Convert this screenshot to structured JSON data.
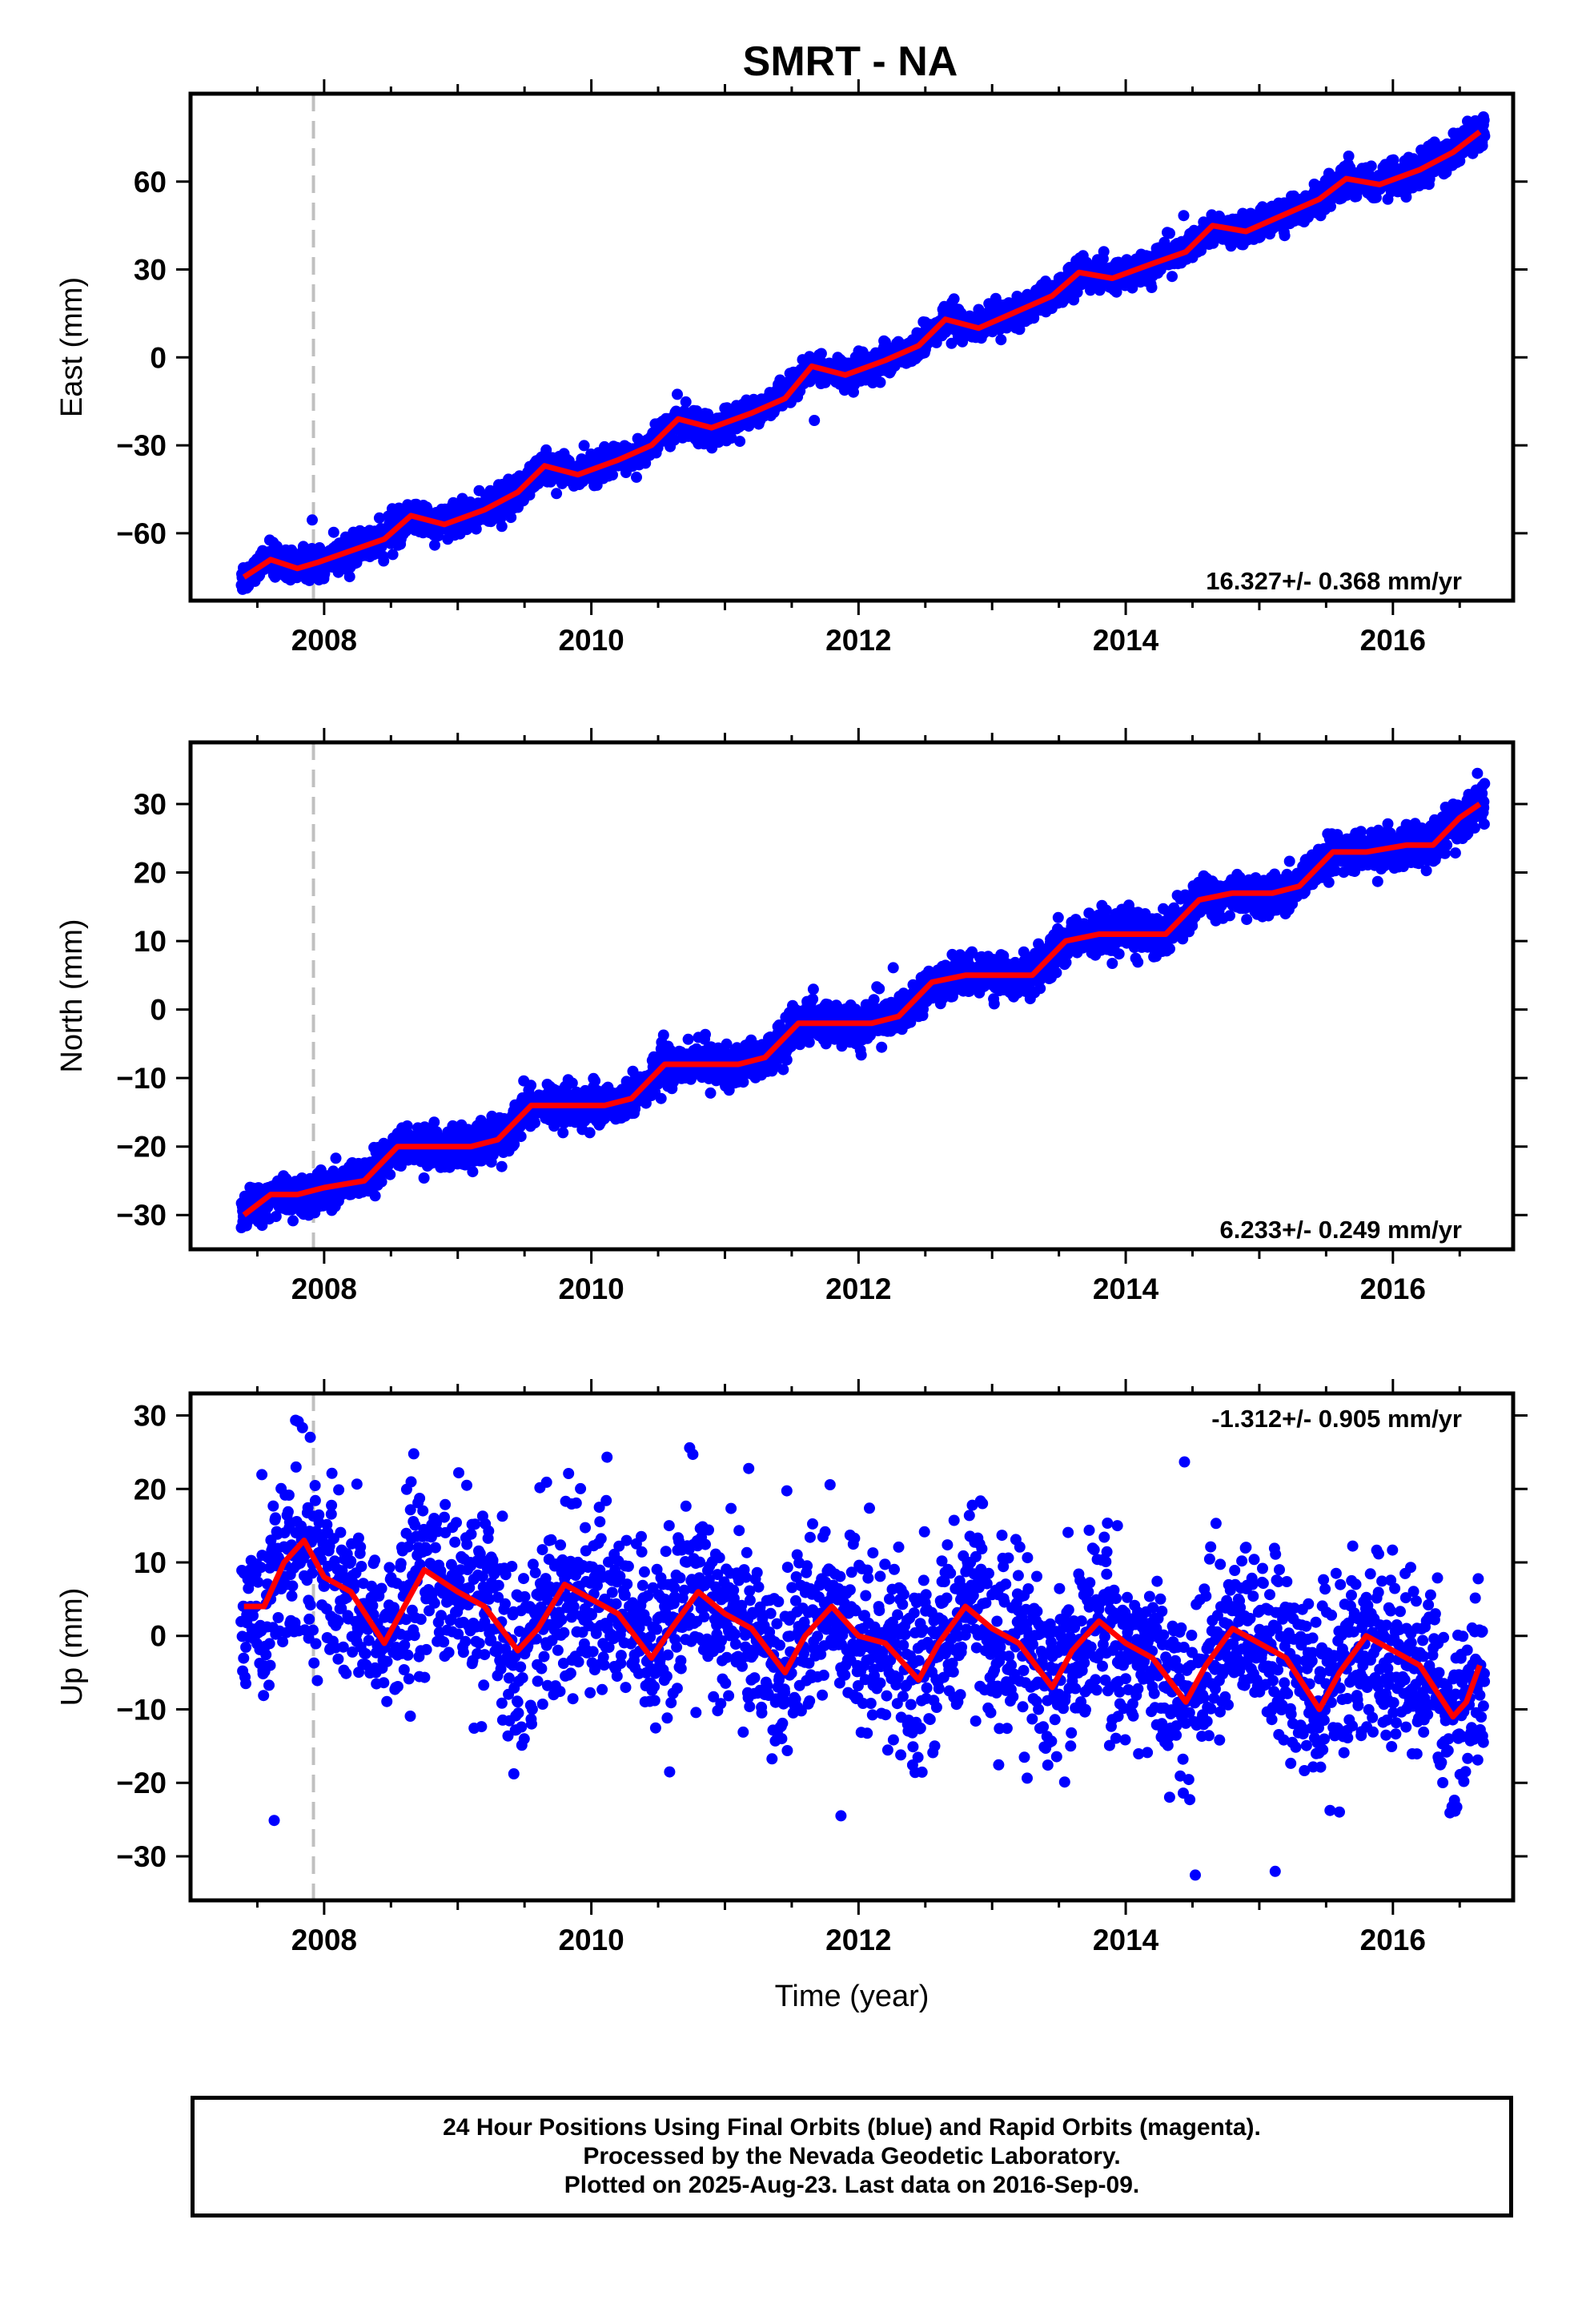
{
  "chart_data": [
    {
      "type": "scatter",
      "title": "SMRT - NA",
      "ylabel": "East (mm)",
      "xlabel": "",
      "xlim": [
        2007.0,
        2016.9
      ],
      "ylim": [
        -83,
        90
      ],
      "xticks": [
        2008,
        2010,
        2012,
        2014,
        2016
      ],
      "yticks": [
        -60,
        -30,
        0,
        30,
        60
      ],
      "vline_x": 2007.92,
      "rate_annotation": "16.327+/- 0.368 mm/yr",
      "rate_position": "bottom-right",
      "series": [
        {
          "name": "Final Orbits (blue)",
          "color": "#0000ff",
          "x": [
            2007.4,
            2007.5,
            2007.6,
            2007.7,
            2007.8,
            2007.9,
            2008.0,
            2008.2,
            2008.4,
            2008.6,
            2008.8,
            2009.0,
            2009.3,
            2009.6,
            2009.9,
            2010.2,
            2010.5,
            2010.8,
            2011.1,
            2011.4,
            2011.6,
            2011.9,
            2012.2,
            2012.5,
            2012.8,
            2013.1,
            2013.4,
            2013.7,
            2014.0,
            2014.3,
            2014.6,
            2014.9,
            2015.2,
            2015.5,
            2015.8,
            2016.1,
            2016.4,
            2016.65
          ],
          "y": [
            -76,
            -71,
            -69,
            -71,
            -73,
            -72,
            -70,
            -67,
            -63,
            -55,
            -57,
            -55,
            -48,
            -38,
            -40,
            -34,
            -24,
            -25,
            -19,
            -14,
            -3,
            -5,
            0,
            12,
            10,
            18,
            26,
            28,
            32,
            36,
            45,
            44,
            49,
            58,
            60,
            64,
            70,
            76
          ]
        }
      ],
      "fit_line": {
        "name": "Model",
        "color": "#ff0000",
        "x": [
          2007.4,
          2007.6,
          2007.8,
          2007.95,
          2008.2,
          2008.45,
          2008.65,
          2008.9,
          2009.2,
          2009.45,
          2009.65,
          2009.9,
          2010.2,
          2010.45,
          2010.65,
          2010.9,
          2011.2,
          2011.45,
          2011.65,
          2011.9,
          2012.2,
          2012.45,
          2012.65,
          2012.9,
          2013.2,
          2013.45,
          2013.65,
          2013.9,
          2014.2,
          2014.45,
          2014.65,
          2014.9,
          2015.2,
          2015.45,
          2015.65,
          2015.9,
          2016.2,
          2016.45,
          2016.65
        ],
        "y": [
          -75,
          -69,
          -72,
          -70,
          -66,
          -62,
          -54,
          -57,
          -52,
          -46,
          -37,
          -40,
          -35,
          -30,
          -21,
          -24,
          -19,
          -14,
          -3,
          -6,
          -1,
          4,
          13,
          10,
          16,
          21,
          29,
          27,
          32,
          36,
          45,
          43,
          49,
          54,
          61,
          59,
          64,
          70,
          77
        ]
      }
    },
    {
      "type": "scatter",
      "title": "",
      "ylabel": "North (mm)",
      "xlabel": "",
      "xlim": [
        2007.0,
        2016.9
      ],
      "ylim": [
        -35,
        39
      ],
      "xticks": [
        2008,
        2010,
        2012,
        2014,
        2016
      ],
      "yticks": [
        -30,
        -20,
        -10,
        0,
        10,
        20,
        30
      ],
      "vline_x": 2007.92,
      "rate_annotation": "6.233+/- 0.249 mm/yr",
      "rate_position": "bottom-right",
      "series": [
        {
          "name": "Final Orbits (blue)",
          "color": "#0000ff",
          "x": [
            2007.4,
            2007.6,
            2007.8,
            2008.0,
            2008.3,
            2008.6,
            2008.9,
            2009.2,
            2009.5,
            2009.8,
            2010.1,
            2010.4,
            2010.7,
            2011.0,
            2011.3,
            2011.6,
            2011.9,
            2012.2,
            2012.5,
            2012.8,
            2013.1,
            2013.4,
            2013.7,
            2014.0,
            2014.3,
            2014.6,
            2014.9,
            2015.2,
            2015.5,
            2015.8,
            2016.1,
            2016.4,
            2016.65
          ],
          "y": [
            -30,
            -27,
            -27,
            -26,
            -25,
            -20,
            -20,
            -19,
            -14,
            -14,
            -13,
            -12,
            -8,
            -8,
            -7,
            -1,
            -1,
            -1,
            5,
            5,
            5,
            6,
            10,
            11,
            11,
            17,
            17,
            17,
            23,
            23,
            24,
            24,
            30
          ]
        }
      ],
      "fit_line": {
        "name": "Model",
        "color": "#ff0000",
        "x": [
          2007.4,
          2007.6,
          2007.8,
          2008.0,
          2008.3,
          2008.55,
          2008.8,
          2009.1,
          2009.3,
          2009.55,
          2009.8,
          2010.1,
          2010.3,
          2010.55,
          2010.8,
          2011.1,
          2011.3,
          2011.55,
          2011.8,
          2012.1,
          2012.3,
          2012.55,
          2012.8,
          2013.1,
          2013.3,
          2013.55,
          2013.8,
          2014.1,
          2014.3,
          2014.55,
          2014.8,
          2015.1,
          2015.3,
          2015.55,
          2015.8,
          2016.1,
          2016.3,
          2016.5,
          2016.65
        ],
        "y": [
          -30,
          -27,
          -27,
          -26,
          -25,
          -20,
          -20,
          -20,
          -19,
          -14,
          -14,
          -14,
          -13,
          -8,
          -8,
          -8,
          -7,
          -2,
          -2,
          -2,
          -1,
          4,
          5,
          5,
          5,
          10,
          11,
          11,
          11,
          16,
          17,
          17,
          18,
          23,
          23,
          24,
          24,
          28,
          30
        ]
      }
    },
    {
      "type": "scatter",
      "title": "",
      "ylabel": "Up (mm)",
      "xlabel": "Time (year)",
      "xlim": [
        2007.0,
        2016.9
      ],
      "ylim": [
        -36,
        33
      ],
      "xticks": [
        2008,
        2010,
        2012,
        2014,
        2016
      ],
      "yticks": [
        -30,
        -20,
        -10,
        0,
        10,
        20,
        30
      ],
      "vline_x": 2007.92,
      "rate_annotation": "-1.312+/- 0.905 mm/yr",
      "rate_position": "top-right",
      "series": [
        {
          "name": "Final Orbits (blue)",
          "color": "#0000ff",
          "x": [
            2007.4,
            2007.6,
            2007.8,
            2007.85,
            2008.2,
            2008.45,
            2008.7,
            2009.0,
            2009.2,
            2009.45,
            2009.8,
            2010.1,
            2010.3,
            2010.5,
            2010.8,
            2011.1,
            2011.45,
            2011.8,
            2012.1,
            2012.4,
            2012.8,
            2013.1,
            2013.45,
            2013.8,
            2014.1,
            2014.45,
            2014.8,
            2015.1,
            2015.45,
            2015.8,
            2016.1,
            2016.45,
            2016.65
          ],
          "y": [
            4,
            5,
            11,
            13,
            8,
            0,
            9,
            6,
            3,
            -2,
            7,
            5,
            1,
            -3,
            6,
            3,
            -5,
            2,
            -1,
            -6,
            4,
            0,
            -7,
            2,
            -2,
            -9,
            1,
            -2,
            -10,
            0,
            -4,
            -11,
            -5
          ]
        }
      ],
      "fit_line": {
        "name": "Model",
        "color": "#ff0000",
        "x": [
          2007.4,
          2007.55,
          2007.7,
          2007.85,
          2008.0,
          2008.2,
          2008.45,
          2008.6,
          2008.75,
          2009.0,
          2009.2,
          2009.45,
          2009.6,
          2009.8,
          2010.0,
          2010.2,
          2010.45,
          2010.6,
          2010.8,
          2011.0,
          2011.2,
          2011.45,
          2011.6,
          2011.8,
          2012.0,
          2012.2,
          2012.45,
          2012.6,
          2012.8,
          2013.0,
          2013.2,
          2013.45,
          2013.6,
          2013.8,
          2014.0,
          2014.2,
          2014.45,
          2014.6,
          2014.8,
          2015.0,
          2015.2,
          2015.45,
          2015.6,
          2015.8,
          2016.0,
          2016.2,
          2016.45,
          2016.55,
          2016.65
        ],
        "y": [
          4,
          4,
          10,
          13,
          8,
          6,
          -1,
          4,
          9,
          6,
          4,
          -2,
          1,
          7,
          5,
          3,
          -3,
          1,
          6,
          3,
          1,
          -5,
          0,
          4,
          0,
          -1,
          -6,
          -1,
          4,
          1,
          -1,
          -7,
          -2,
          2,
          -1,
          -3,
          -9,
          -4,
          1,
          -1,
          -3,
          -10,
          -5,
          0,
          -2,
          -4,
          -11,
          -9,
          -4
        ]
      }
    }
  ],
  "footer": {
    "line1": "24 Hour Positions Using Final Orbits (blue) and Rapid Orbits (magenta).",
    "line2": "Processed by the Nevada Geodetic Laboratory.",
    "line3": "Plotted on 2025-Aug-23. Last data on 2016-Sep-09."
  },
  "colors": {
    "points": "#0000ff",
    "model": "#ff0000",
    "reference_line": "#c0c0c0",
    "frame": "#000000"
  }
}
